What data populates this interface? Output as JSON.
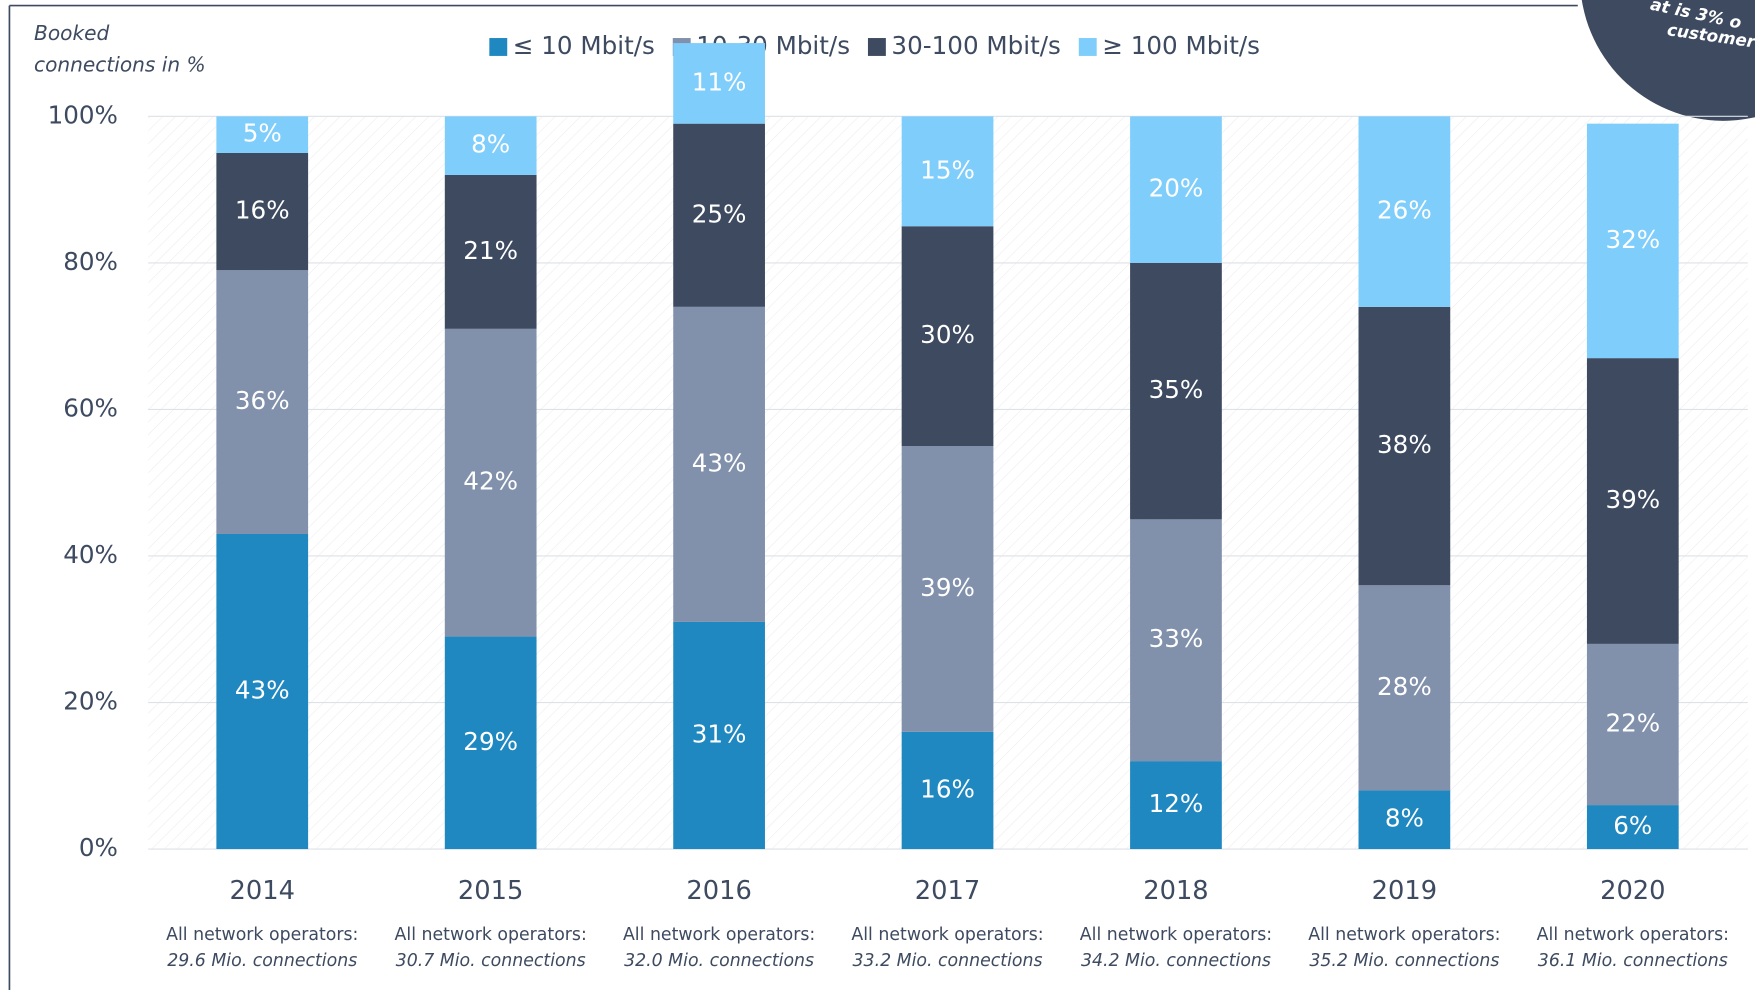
{
  "chart_data": {
    "type": "stacked_bar",
    "y_label": [
      "Booked",
      "connections in %"
    ],
    "categories": [
      "2014",
      "2015",
      "2016",
      "2017",
      "2018",
      "2019",
      "2020"
    ],
    "category_notes": [
      [
        "All network operators:",
        "29.6 Mio. connections"
      ],
      [
        "All network operators:",
        "30.7 Mio. connections"
      ],
      [
        "All network operators:",
        "32.0 Mio. connections"
      ],
      [
        "All network operators:",
        "33.2 Mio. connections"
      ],
      [
        "All network operators:",
        "34.2 Mio. connections"
      ],
      [
        "All network operators:",
        "35.2 Mio. connections"
      ],
      [
        "All network operators:",
        "36.1 Mio. connections"
      ]
    ],
    "series": [
      {
        "name": "≤ 10 Mbit/s",
        "color": "#1f88c0",
        "values": [
          43,
          29,
          31,
          16,
          12,
          8,
          6
        ],
        "value_labels": [
          "43%",
          "29%",
          "31%",
          "16%",
          "12%",
          "8%",
          "6%"
        ]
      },
      {
        "name": "10-30 Mbit/s",
        "color": "#8190ab",
        "values": [
          36,
          42,
          43,
          39,
          33,
          28,
          22
        ],
        "value_labels": [
          "36%",
          "42%",
          "43%",
          "39%",
          "33%",
          "28%",
          "22%"
        ]
      },
      {
        "name": "30-100 Mbit/s",
        "color": "#3d4a60",
        "values": [
          16,
          21,
          25,
          30,
          35,
          38,
          39
        ],
        "value_labels": [
          "16%",
          "21%",
          "25%",
          "30%",
          "35%",
          "38%",
          "39%"
        ]
      },
      {
        "name": "≥ 100 Mbit/s",
        "color": "#7fcdfb",
        "values": [
          5,
          8,
          11,
          15,
          20,
          26,
          32
        ],
        "value_labels": [
          "5%",
          "8%",
          "11%",
          "15%",
          "20%",
          "26%",
          "32%"
        ]
      }
    ],
    "ylim": [
      0,
      100
    ],
    "yticks": [
      {
        "value": 0,
        "label": "0%"
      },
      {
        "value": 20,
        "label": "20%"
      },
      {
        "value": 40,
        "label": "40%"
      },
      {
        "value": 60,
        "label": "60%"
      },
      {
        "value": 80,
        "label": "80%"
      },
      {
        "value": 100,
        "label": "100%"
      }
    ],
    "grid": true,
    "legend": "top",
    "annotation": [
      "at is 3% o",
      "customer"
    ]
  }
}
